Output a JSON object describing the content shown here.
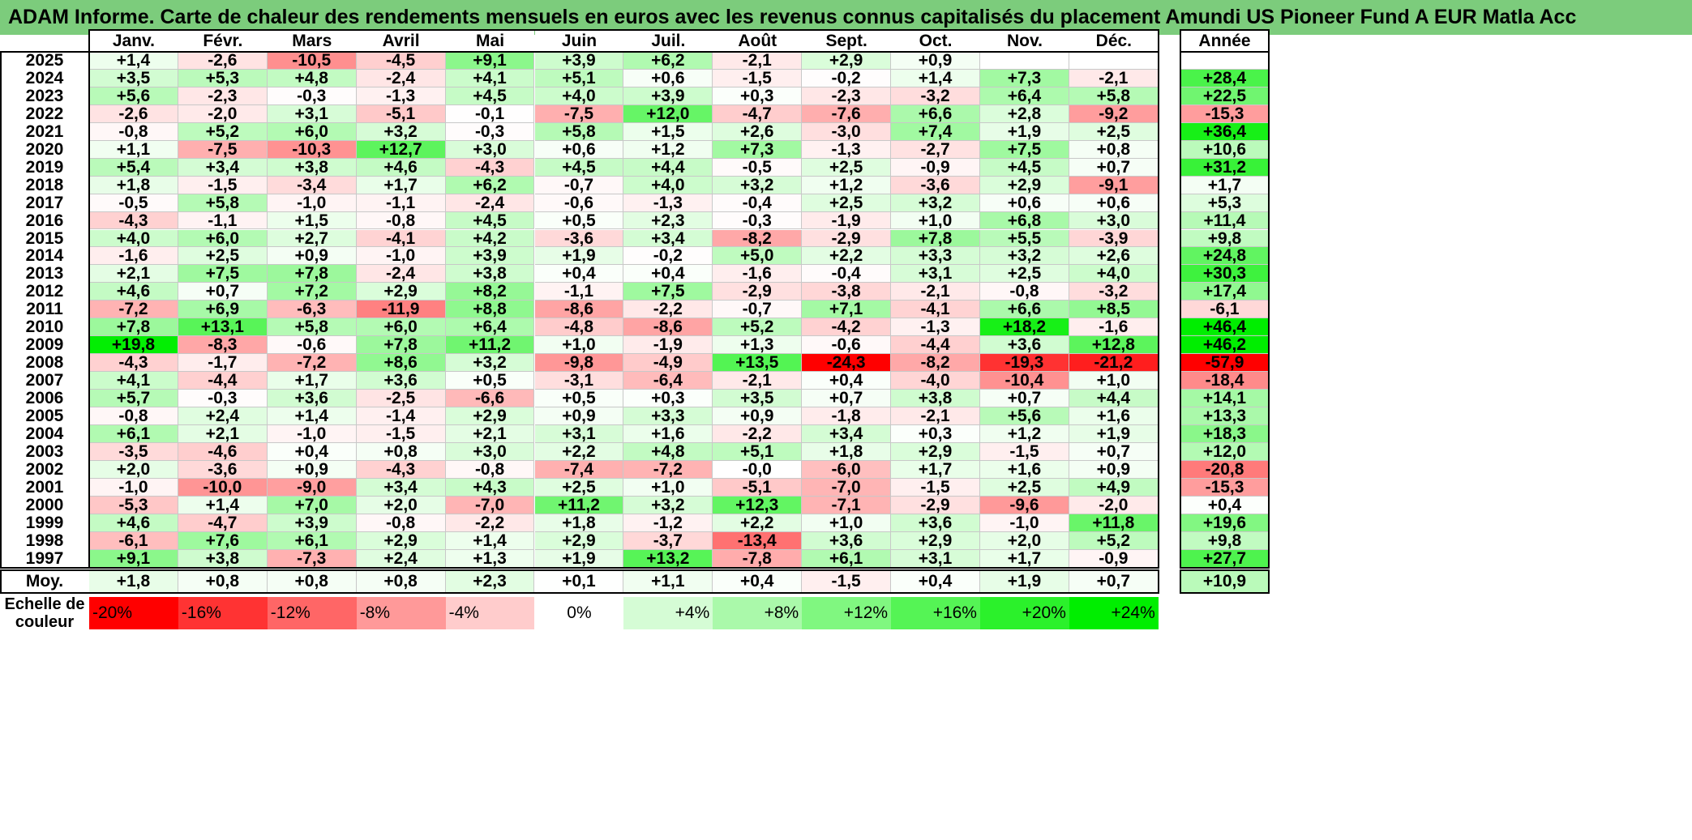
{
  "title": "ADAM Informe. Carte de chaleur des rendements mensuels en euros avec les revenus connus capitalisés du placement Amundi US Pioneer Fund A EUR Matla Acc",
  "chart_data": {
    "type": "heatmap",
    "title": "ADAM Informe. Carte de chaleur des rendements mensuels en euros avec les revenus connus capitalisés du placement Amundi US Pioneer Fund A EUR Matla Acc",
    "columns": [
      "Janv.",
      "Févr.",
      "Mars",
      "Avril",
      "Mai",
      "Juin",
      "Juil.",
      "Août",
      "Sept.",
      "Oct.",
      "Nov.",
      "Déc."
    ],
    "year_column_label": "Année",
    "rows": [
      {
        "year": "2025",
        "months": [
          "+1,4",
          "-2,6",
          "-10,5",
          "-4,5",
          "+9,1",
          "+3,9",
          "+6,2",
          "-2,1",
          "+2,9",
          "+0,9",
          "",
          ""
        ],
        "annual": ""
      },
      {
        "year": "2024",
        "months": [
          "+3,5",
          "+5,3",
          "+4,8",
          "-2,4",
          "+4,1",
          "+5,1",
          "+0,6",
          "-1,5",
          "-0,2",
          "+1,4",
          "+7,3",
          "-2,1"
        ],
        "annual": "+28,4"
      },
      {
        "year": "2023",
        "months": [
          "+5,6",
          "-2,3",
          "-0,3",
          "-1,3",
          "+4,5",
          "+4,0",
          "+3,9",
          "+0,3",
          "-2,3",
          "-3,2",
          "+6,4",
          "+5,8"
        ],
        "annual": "+22,5"
      },
      {
        "year": "2022",
        "months": [
          "-2,6",
          "-2,0",
          "+3,1",
          "-5,1",
          "-0,1",
          "-7,5",
          "+12,0",
          "-4,7",
          "-7,6",
          "+6,6",
          "+2,8",
          "-9,2"
        ],
        "annual": "-15,3"
      },
      {
        "year": "2021",
        "months": [
          "-0,8",
          "+5,2",
          "+6,0",
          "+3,2",
          "-0,3",
          "+5,8",
          "+1,5",
          "+2,6",
          "-3,0",
          "+7,4",
          "+1,9",
          "+2,5"
        ],
        "annual": "+36,4"
      },
      {
        "year": "2020",
        "months": [
          "+1,1",
          "-7,5",
          "-10,3",
          "+12,7",
          "+3,0",
          "+0,6",
          "+1,2",
          "+7,3",
          "-1,3",
          "-2,7",
          "+7,5",
          "+0,8"
        ],
        "annual": "+10,6"
      },
      {
        "year": "2019",
        "months": [
          "+5,4",
          "+3,4",
          "+3,8",
          "+4,6",
          "-4,3",
          "+4,5",
          "+4,4",
          "-0,5",
          "+2,5",
          "-0,9",
          "+4,5",
          "+0,7"
        ],
        "annual": "+31,2"
      },
      {
        "year": "2018",
        "months": [
          "+1,8",
          "-1,5",
          "-3,4",
          "+1,7",
          "+6,2",
          "-0,7",
          "+4,0",
          "+3,2",
          "+1,2",
          "-3,6",
          "+2,9",
          "-9,1"
        ],
        "annual": "+1,7"
      },
      {
        "year": "2017",
        "months": [
          "-0,5",
          "+5,8",
          "-1,0",
          "-1,1",
          "-2,4",
          "-0,6",
          "-1,3",
          "-0,4",
          "+2,5",
          "+3,2",
          "+0,6",
          "+0,6"
        ],
        "annual": "+5,3"
      },
      {
        "year": "2016",
        "months": [
          "-4,3",
          "-1,1",
          "+1,5",
          "-0,8",
          "+4,5",
          "+0,5",
          "+2,3",
          "-0,3",
          "-1,9",
          "+1,0",
          "+6,8",
          "+3,0"
        ],
        "annual": "+11,4"
      },
      {
        "year": "2015",
        "months": [
          "+4,0",
          "+6,0",
          "+2,7",
          "-4,1",
          "+4,2",
          "-3,6",
          "+3,4",
          "-8,2",
          "-2,9",
          "+7,8",
          "+5,5",
          "-3,9"
        ],
        "annual": "+9,8"
      },
      {
        "year": "2014",
        "months": [
          "-1,6",
          "+2,5",
          "+0,9",
          "-1,0",
          "+3,9",
          "+1,9",
          "-0,2",
          "+5,0",
          "+2,2",
          "+3,3",
          "+3,2",
          "+2,6"
        ],
        "annual": "+24,8"
      },
      {
        "year": "2013",
        "months": [
          "+2,1",
          "+7,5",
          "+7,8",
          "-2,4",
          "+3,8",
          "+0,4",
          "+0,4",
          "-1,6",
          "-0,4",
          "+3,1",
          "+2,5",
          "+4,0"
        ],
        "annual": "+30,3"
      },
      {
        "year": "2012",
        "months": [
          "+4,6",
          "+0,7",
          "+7,2",
          "+2,9",
          "+8,2",
          "-1,1",
          "+7,5",
          "-2,9",
          "-3,8",
          "-2,1",
          "-0,8",
          "-3,2"
        ],
        "annual": "+17,4"
      },
      {
        "year": "2011",
        "months": [
          "-7,2",
          "+6,9",
          "-6,3",
          "-11,9",
          "+8,8",
          "-8,6",
          "-2,2",
          "-0,7",
          "+7,1",
          "-4,1",
          "+6,6",
          "+8,5"
        ],
        "annual": "-6,1"
      },
      {
        "year": "2010",
        "months": [
          "+7,8",
          "+13,1",
          "+5,8",
          "+6,0",
          "+6,4",
          "-4,8",
          "-8,6",
          "+5,2",
          "-4,2",
          "-1,3",
          "+18,2",
          "-1,6"
        ],
        "annual": "+46,4"
      },
      {
        "year": "2009",
        "months": [
          "+19,8",
          "-8,3",
          "-0,6",
          "+7,8",
          "+11,2",
          "+1,0",
          "-1,9",
          "+1,3",
          "-0,6",
          "-4,4",
          "+3,6",
          "+12,8"
        ],
        "annual": "+46,2"
      },
      {
        "year": "2008",
        "months": [
          "-4,3",
          "-1,7",
          "-7,2",
          "+8,6",
          "+3,2",
          "-9,8",
          "-4,9",
          "+13,5",
          "-24,3",
          "-8,2",
          "-19,3",
          "-21,2"
        ],
        "annual": "-57,9"
      },
      {
        "year": "2007",
        "months": [
          "+4,1",
          "-4,4",
          "+1,7",
          "+3,6",
          "+0,5",
          "-3,1",
          "-6,4",
          "-2,1",
          "+0,4",
          "-4,0",
          "-10,4",
          "+1,0"
        ],
        "annual": "-18,4"
      },
      {
        "year": "2006",
        "months": [
          "+5,7",
          "-0,3",
          "+3,6",
          "-2,5",
          "-6,6",
          "+0,5",
          "+0,3",
          "+3,5",
          "+0,7",
          "+3,8",
          "+0,7",
          "+4,4"
        ],
        "annual": "+14,1"
      },
      {
        "year": "2005",
        "months": [
          "-0,8",
          "+2,4",
          "+1,4",
          "-1,4",
          "+2,9",
          "+0,9",
          "+3,3",
          "+0,9",
          "-1,8",
          "-2,1",
          "+5,6",
          "+1,6"
        ],
        "annual": "+13,3"
      },
      {
        "year": "2004",
        "months": [
          "+6,1",
          "+2,1",
          "-1,0",
          "-1,5",
          "+2,1",
          "+3,1",
          "+1,6",
          "-2,2",
          "+3,4",
          "+0,3",
          "+1,2",
          "+1,9"
        ],
        "annual": "+18,3"
      },
      {
        "year": "2003",
        "months": [
          "-3,5",
          "-4,6",
          "+0,4",
          "+0,8",
          "+3,0",
          "+2,2",
          "+4,8",
          "+5,1",
          "+1,8",
          "+2,9",
          "-1,5",
          "+0,7"
        ],
        "annual": "+12,0"
      },
      {
        "year": "2002",
        "months": [
          "+2,0",
          "-3,6",
          "+0,9",
          "-4,3",
          "-0,8",
          "-7,4",
          "-7,2",
          "-0,0",
          "-6,0",
          "+1,7",
          "+1,6",
          "+0,9"
        ],
        "annual": "-20,8"
      },
      {
        "year": "2001",
        "months": [
          "-1,0",
          "-10,0",
          "-9,0",
          "+3,4",
          "+4,3",
          "+2,5",
          "+1,0",
          "-5,1",
          "-7,0",
          "-1,5",
          "+2,5",
          "+4,9"
        ],
        "annual": "-15,3"
      },
      {
        "year": "2000",
        "months": [
          "-5,3",
          "+1,4",
          "+7,0",
          "+2,0",
          "-7,0",
          "+11,2",
          "+3,2",
          "+12,3",
          "-7,1",
          "-2,9",
          "-9,6",
          "-2,0"
        ],
        "annual": "+0,4"
      },
      {
        "year": "1999",
        "months": [
          "+4,6",
          "-4,7",
          "+3,9",
          "-0,8",
          "-2,2",
          "+1,8",
          "-1,2",
          "+2,2",
          "+1,0",
          "+3,6",
          "-1,0",
          "+11,8"
        ],
        "annual": "+19,6"
      },
      {
        "year": "1998",
        "months": [
          "-6,1",
          "+7,6",
          "+6,1",
          "+2,9",
          "+1,4",
          "+2,9",
          "-3,7",
          "-13,4",
          "+3,6",
          "+2,9",
          "+2,0",
          "+5,2"
        ],
        "annual": "+9,8"
      },
      {
        "year": "1997",
        "months": [
          "+9,1",
          "+3,8",
          "-7,3",
          "+2,4",
          "+1,3",
          "+1,9",
          "+13,2",
          "-7,8",
          "+6,1",
          "+3,1",
          "+1,7",
          "-0,9"
        ],
        "annual": "+27,7"
      }
    ],
    "average_row": {
      "label": "Moy.",
      "months": [
        "+1,8",
        "+0,8",
        "+0,8",
        "+0,8",
        "+2,3",
        "+0,1",
        "+1,1",
        "+0,4",
        "-1,5",
        "+0,4",
        "+1,9",
        "+0,7"
      ],
      "annual": "+10,9"
    },
    "scale": {
      "label_line1": "Echelle de",
      "label_line2": "couleur",
      "stops": [
        "-20%",
        "-16%",
        "-12%",
        "-8%",
        "-4%",
        "0%",
        "+4%",
        "+8%",
        "+12%",
        "+16%",
        "+20%",
        "+24%"
      ],
      "values": [
        -20,
        -16,
        -12,
        -8,
        -4,
        0,
        4,
        8,
        12,
        16,
        20,
        24
      ]
    },
    "colors": {
      "negative_max": "#ff0000",
      "neutral": "#ffffff",
      "positive_max": "#00ee00",
      "title_bar": "#7ccc7c"
    }
  }
}
